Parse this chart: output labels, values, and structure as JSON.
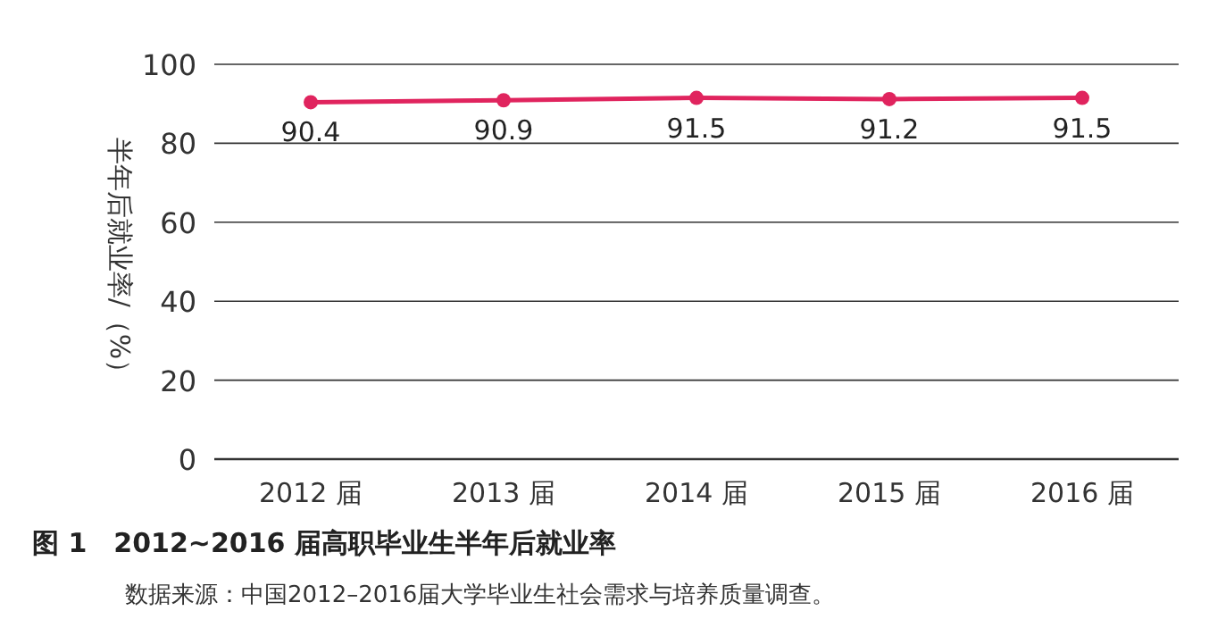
{
  "chart_data": {
    "type": "line",
    "title": "图 1　2012~2016 届高职毕业生半年后就业率",
    "ylabel": "半年后就业率/（%）",
    "annotations": [
      "数据来源：中国2012–2016届大学毕业生社会需求与培养质量调查。"
    ],
    "categories": [
      "2012 届",
      "2013 届",
      "2014 届",
      "2015 届",
      "2016 届"
    ],
    "series": [
      {
        "color": "#e0245e",
        "values": [
          90.4,
          90.9,
          91.5,
          91.2,
          91.5
        ]
      }
    ],
    "ylim": [
      0,
      100
    ],
    "yticks": [
      0,
      20,
      40,
      60,
      80,
      100
    ],
    "grid": "y",
    "marker": "circle",
    "data_labels": true
  }
}
